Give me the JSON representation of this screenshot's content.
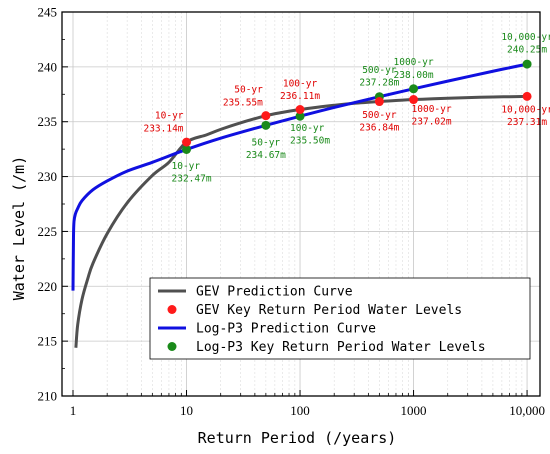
{
  "chart_data": {
    "type": "line",
    "xscale": "log",
    "xlabel": "Return Period (/years)",
    "ylabel": "Water Level (/m)",
    "xlim": [
      0.8,
      13000
    ],
    "ylim": [
      210,
      245
    ],
    "xticks": [
      1,
      10,
      100,
      1000,
      10000
    ],
    "xtick_labels": [
      "1",
      "10",
      "100",
      "1000",
      "10,000"
    ],
    "yticks": [
      210,
      215,
      220,
      225,
      230,
      235,
      240,
      245
    ],
    "ytick_labels": [
      "210",
      "215",
      "220",
      "225",
      "230",
      "235",
      "240",
      "245"
    ],
    "grid": "on",
    "legend_position": "bottom-right",
    "colors": {
      "gev_curve": "#505050",
      "gev_points": "#ff1a1a",
      "gev_labels": "#e00000",
      "logp3_curve": "#1010e0",
      "logp3_points": "#1a8a1a",
      "logp3_labels": "#1a8a1a"
    },
    "series": [
      {
        "name": "GEV Prediction Curve",
        "kind": "line",
        "x": [
          1.06,
          1.1,
          1.2,
          1.35,
          1.5,
          2,
          3,
          5,
          7,
          10,
          15,
          20,
          30,
          50,
          70,
          100,
          150,
          200,
          300,
          500,
          700,
          1000,
          1500,
          2000,
          3000,
          5000,
          7000,
          10000
        ],
        "y": [
          214.4,
          216.5,
          218.8,
          220.7,
          222.1,
          224.8,
          227.6,
          230.1,
          231.3,
          233.14,
          233.8,
          234.3,
          234.9,
          235.55,
          235.85,
          236.11,
          236.35,
          236.5,
          236.68,
          236.84,
          236.93,
          237.02,
          237.09,
          237.14,
          237.2,
          237.25,
          237.28,
          237.31
        ]
      },
      {
        "name": "GEV Key Return Period Water Levels",
        "kind": "scatter",
        "x": [
          10,
          50,
          100,
          500,
          1000,
          10000
        ],
        "y": [
          233.14,
          235.55,
          236.11,
          236.84,
          237.02,
          237.31
        ]
      },
      {
        "name": "Log-P3 Prediction Curve",
        "kind": "line",
        "x": [
          1.0,
          1.01,
          1.02,
          1.05,
          1.1,
          1.2,
          1.5,
          2,
          3,
          5,
          10,
          20,
          50,
          100,
          200,
          500,
          1000,
          2000,
          5000,
          10000
        ],
        "y": [
          219.6,
          224.5,
          225.9,
          226.6,
          227.1,
          227.8,
          228.8,
          229.6,
          230.5,
          231.3,
          232.47,
          233.5,
          234.67,
          235.5,
          236.3,
          237.28,
          238.0,
          238.7,
          239.6,
          240.25
        ]
      },
      {
        "name": "Log-P3 Key Return Period Water Levels",
        "kind": "scatter",
        "x": [
          10,
          50,
          100,
          500,
          1000,
          10000
        ],
        "y": [
          232.47,
          234.67,
          235.5,
          237.28,
          238.0,
          240.25
        ]
      }
    ],
    "annotations": [
      {
        "group": "gev",
        "period": "10-yr",
        "value": "233.14m",
        "x": 10,
        "y": 233.14,
        "anchor": "end",
        "ty1": 235.3,
        "ty2": 234.1,
        "dx": -3
      },
      {
        "group": "gev",
        "period": "50-yr",
        "value": "235.55m",
        "x": 50,
        "y": 235.55,
        "anchor": "end",
        "ty1": 237.65,
        "ty2": 236.5,
        "dx": -3
      },
      {
        "group": "gev",
        "period": "100-yr",
        "value": "236.11m",
        "x": 100,
        "y": 236.11,
        "anchor": "middle",
        "ty1": 238.2,
        "ty2": 237.05,
        "dx": 0
      },
      {
        "group": "gev",
        "period": "500-yr",
        "value": "236.84m",
        "x": 500,
        "y": 236.84,
        "anchor": "middle",
        "ty1": 235.35,
        "ty2": 234.2,
        "dx": 0
      },
      {
        "group": "gev",
        "period": "1000-yr",
        "value": "237.02m",
        "x": 1000,
        "y": 237.02,
        "anchor": "start",
        "ty1": 235.9,
        "ty2": 234.75,
        "dx": -2
      },
      {
        "group": "gev",
        "period": "10,000-yr",
        "value": "237.31m",
        "x": 10000,
        "y": 237.31,
        "anchor": "middle",
        "ty1": 235.85,
        "ty2": 234.7,
        "dx": 0
      },
      {
        "group": "logp3",
        "period": "10-yr",
        "value": "232.47m",
        "x": 10,
        "y": 232.47,
        "anchor": "start",
        "ty1": 230.7,
        "ty2": 229.55,
        "dx": -15
      },
      {
        "group": "logp3",
        "period": "50-yr",
        "value": "234.67m",
        "x": 50,
        "y": 234.67,
        "anchor": "middle",
        "ty1": 232.85,
        "ty2": 231.7,
        "dx": 0
      },
      {
        "group": "logp3",
        "period": "100-yr",
        "value": "235.50m",
        "x": 100,
        "y": 235.5,
        "anchor": "start",
        "ty1": 234.15,
        "ty2": 233.0,
        "dx": -10
      },
      {
        "group": "logp3",
        "period": "500-yr",
        "value": "237.28m",
        "x": 500,
        "y": 237.28,
        "anchor": "middle",
        "ty1": 239.45,
        "ty2": 238.3,
        "dx": 0
      },
      {
        "group": "logp3",
        "period": "1000-yr",
        "value": "238.00m",
        "x": 1000,
        "y": 238.0,
        "anchor": "middle",
        "ty1": 240.15,
        "ty2": 239.0,
        "dx": 0
      },
      {
        "group": "logp3",
        "period": "10,000-yr",
        "value": "240.25m",
        "x": 10000,
        "y": 240.25,
        "anchor": "middle",
        "ty1": 242.45,
        "ty2": 241.3,
        "dx": 0
      }
    ]
  }
}
